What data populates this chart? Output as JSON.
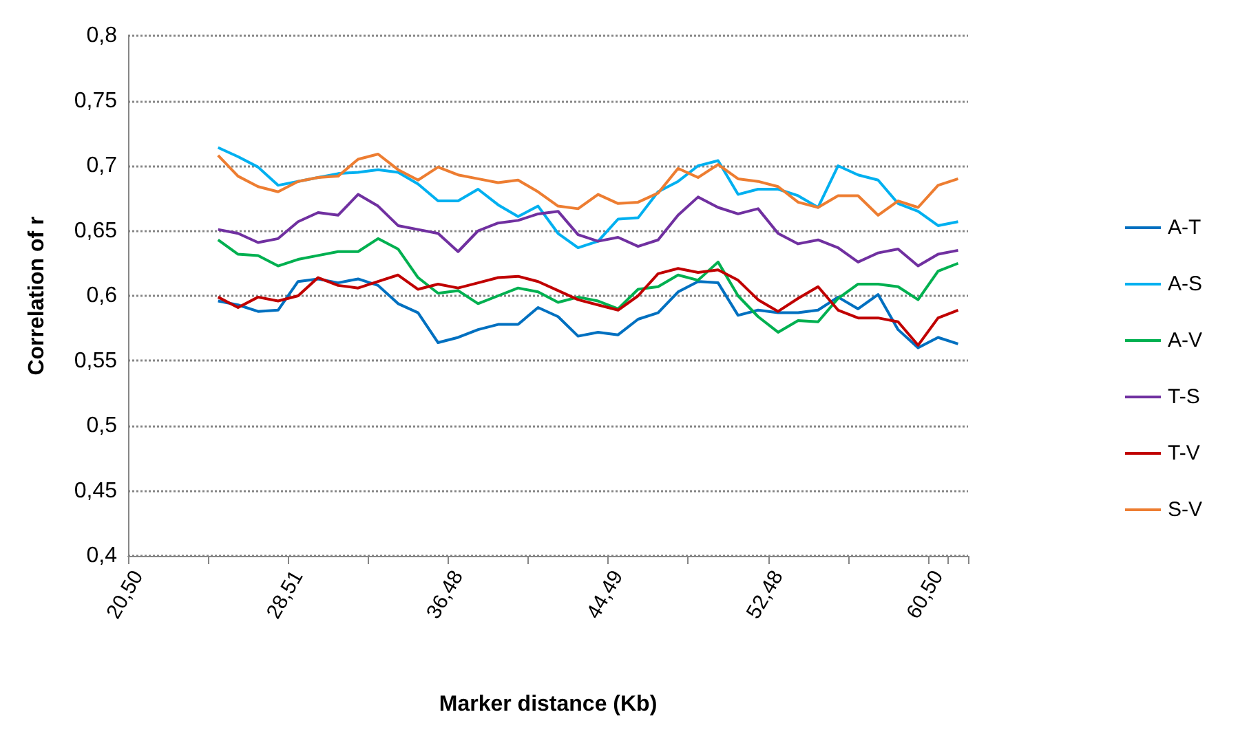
{
  "chart_data": {
    "type": "line",
    "xlabel": "Marker distance (Kb)",
    "ylabel": "Correlation of r",
    "categories": [
      "20,50",
      null,
      null,
      null,
      null,
      null,
      null,
      null,
      "28,51",
      null,
      null,
      null,
      null,
      null,
      null,
      null,
      "36,48",
      null,
      null,
      null,
      null,
      null,
      null,
      null,
      "44,49",
      null,
      null,
      null,
      null,
      null,
      null,
      null,
      "52,48",
      null,
      null,
      null,
      null,
      null,
      null,
      null,
      "60,50",
      null
    ],
    "series": [
      {
        "name": "A-T",
        "color": "#0070c0",
        "values": [
          null,
          null,
          null,
          null,
          0.596,
          0.593,
          0.588,
          0.589,
          0.611,
          0.613,
          0.61,
          0.613,
          0.608,
          0.594,
          0.587,
          0.564,
          0.568,
          0.574,
          0.578,
          0.578,
          0.591,
          0.584,
          0.569,
          0.572,
          0.57,
          0.582,
          0.587,
          0.603,
          0.611,
          0.61,
          0.585,
          0.589,
          0.587,
          0.587,
          0.589,
          0.599,
          0.59,
          0.601,
          0.574,
          0.56,
          0.568,
          0.563
        ]
      },
      {
        "name": "A-S",
        "color": "#00b0f0",
        "values": [
          null,
          null,
          null,
          null,
          0.714,
          0.707,
          0.699,
          0.685,
          0.688,
          0.691,
          0.694,
          0.695,
          0.697,
          0.695,
          0.686,
          0.673,
          0.673,
          0.682,
          0.67,
          0.661,
          0.669,
          0.648,
          0.637,
          0.642,
          0.659,
          0.66,
          0.68,
          0.688,
          0.7,
          0.704,
          0.678,
          0.682,
          0.682,
          0.677,
          0.668,
          0.7,
          0.693,
          0.689,
          0.671,
          0.665,
          0.654,
          0.657
        ]
      },
      {
        "name": "A-V",
        "color": "#00b050",
        "values": [
          null,
          null,
          null,
          null,
          0.643,
          0.632,
          0.631,
          0.623,
          0.628,
          0.631,
          0.634,
          0.634,
          0.644,
          0.636,
          0.614,
          0.602,
          0.604,
          0.594,
          0.6,
          0.606,
          0.603,
          0.595,
          0.599,
          0.596,
          0.59,
          0.605,
          0.607,
          0.616,
          0.612,
          0.626,
          0.6,
          0.584,
          0.572,
          0.581,
          0.58,
          0.598,
          0.609,
          0.609,
          0.607,
          0.597,
          0.619,
          0.625
        ]
      },
      {
        "name": "T-S",
        "color": "#7030a0",
        "values": [
          null,
          null,
          null,
          null,
          0.651,
          0.648,
          0.641,
          0.644,
          0.657,
          0.664,
          0.662,
          0.678,
          0.669,
          0.654,
          0.651,
          0.648,
          0.634,
          0.65,
          0.656,
          0.658,
          0.663,
          0.665,
          0.647,
          0.642,
          0.645,
          0.638,
          0.643,
          0.662,
          0.676,
          0.668,
          0.663,
          0.667,
          0.648,
          0.64,
          0.643,
          0.637,
          0.626,
          0.633,
          0.636,
          0.623,
          0.632,
          0.635
        ]
      },
      {
        "name": "T-V",
        "color": "#c00000",
        "values": [
          null,
          null,
          null,
          null,
          0.599,
          0.591,
          0.599,
          0.596,
          0.6,
          0.614,
          0.608,
          0.606,
          0.611,
          0.616,
          0.605,
          0.609,
          0.606,
          0.61,
          0.614,
          0.615,
          0.611,
          0.604,
          0.597,
          0.593,
          0.589,
          0.6,
          0.617,
          0.621,
          0.618,
          0.62,
          0.612,
          0.597,
          0.588,
          0.598,
          0.607,
          0.589,
          0.583,
          0.583,
          0.58,
          0.562,
          0.583,
          0.589
        ]
      },
      {
        "name": "S-V",
        "color": "#ed7d31",
        "values": [
          null,
          null,
          null,
          null,
          0.708,
          0.692,
          0.684,
          0.68,
          0.688,
          0.691,
          0.692,
          0.705,
          0.709,
          0.697,
          0.689,
          0.699,
          0.693,
          0.69,
          0.687,
          0.689,
          0.68,
          0.669,
          0.667,
          0.678,
          0.671,
          0.672,
          0.679,
          0.698,
          0.691,
          0.701,
          0.69,
          0.688,
          0.684,
          0.672,
          0.668,
          0.677,
          0.677,
          0.662,
          0.673,
          0.668,
          0.685,
          0.69
        ]
      }
    ],
    "ylim": [
      0.4,
      0.8
    ],
    "yticks": [
      {
        "value": 0.4,
        "label": "0,4"
      },
      {
        "value": 0.45,
        "label": "0,45"
      },
      {
        "value": 0.5,
        "label": "0,5"
      },
      {
        "value": 0.55,
        "label": "0,55"
      },
      {
        "value": 0.6,
        "label": "0,6"
      },
      {
        "value": 0.65,
        "label": "0,65"
      },
      {
        "value": 0.7,
        "label": "0,7"
      },
      {
        "value": 0.75,
        "label": "0,75"
      },
      {
        "value": 0.8,
        "label": "0,8"
      }
    ],
    "grid": "y",
    "legend": "right",
    "marker": "none",
    "line_style": "solid"
  }
}
